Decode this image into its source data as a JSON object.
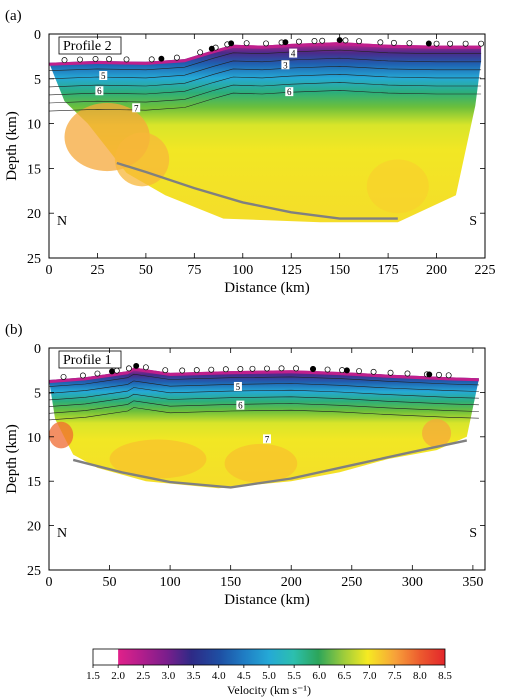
{
  "colors": {
    "ramp": [
      "#ffffff",
      "#e0218a",
      "#b01e8c",
      "#7a1e8c",
      "#2e2a86",
      "#1e4fa3",
      "#1f7dc4",
      "#25a9d6",
      "#2cbfae",
      "#2ca55a",
      "#44b44a",
      "#9acb3c",
      "#e2e82a",
      "#f6ea22",
      "#f9c12a",
      "#f7a03a",
      "#f27f3a",
      "#ec5a2e",
      "#e3262b"
    ],
    "basement": "#808080"
  },
  "chart_data": [
    {
      "type": "heatmap",
      "panel_label": "(a)",
      "profile_label": "Profile 2",
      "xlabel": "Distance (km)",
      "ylabel": "Depth (km)",
      "xlim": [
        0,
        225
      ],
      "ylim": [
        0,
        25
      ],
      "x_ticks": [
        0,
        25,
        50,
        75,
        100,
        125,
        150,
        175,
        200,
        225
      ],
      "y_ticks": [
        0,
        5,
        10,
        15,
        20,
        25
      ],
      "corner_left": "N",
      "corner_right": "S",
      "contour_labels": [
        {
          "text": "3",
          "x": 122,
          "y": 3.6
        },
        {
          "text": "4",
          "x": 126,
          "y": 2.3
        },
        {
          "text": "5",
          "x": 28,
          "y": 4.8
        },
        {
          "text": "6",
          "x": 26,
          "y": 6.5
        },
        {
          "text": "6",
          "x": 124,
          "y": 6.6
        },
        {
          "text": "7",
          "x": 45,
          "y": 8.4
        }
      ],
      "stations_open_x": [
        8,
        16,
        24,
        31,
        40,
        53,
        66,
        78,
        86,
        92,
        102,
        112,
        120,
        129,
        137,
        141,
        153,
        160,
        171,
        178,
        186,
        200,
        207,
        215,
        223
      ],
      "stations_filled_x": [
        58,
        84,
        94,
        122,
        150,
        196
      ],
      "topography": [
        [
          0,
          3.2
        ],
        [
          25,
          3.0
        ],
        [
          50,
          3.1
        ],
        [
          70,
          2.8
        ],
        [
          85,
          1.8
        ],
        [
          95,
          1.2
        ],
        [
          110,
          1.3
        ],
        [
          125,
          1.1
        ],
        [
          150,
          0.9
        ],
        [
          175,
          1.2
        ],
        [
          200,
          1.3
        ],
        [
          223,
          1.3
        ]
      ],
      "model_bottom": [
        [
          0,
          3.2
        ],
        [
          8,
          7.5
        ],
        [
          20,
          10
        ],
        [
          40,
          15.5
        ],
        [
          60,
          18
        ],
        [
          90,
          20.6
        ],
        [
          140,
          21
        ],
        [
          180,
          21
        ],
        [
          210,
          18
        ],
        [
          220,
          8
        ],
        [
          223,
          3.0
        ]
      ],
      "basement_interface": [
        [
          35,
          14.4
        ],
        [
          50,
          15.4
        ],
        [
          75,
          17.2
        ],
        [
          100,
          18.8
        ],
        [
          125,
          19.9
        ],
        [
          150,
          20.6
        ],
        [
          180,
          20.6
        ]
      ]
    },
    {
      "type": "heatmap",
      "panel_label": "(b)",
      "profile_label": "Profile 1",
      "xlabel": "Distance (km)",
      "ylabel": "Depth (km)",
      "xlim": [
        0,
        360
      ],
      "ylim": [
        0,
        25
      ],
      "x_ticks": [
        0,
        50,
        100,
        150,
        200,
        250,
        300,
        350
      ],
      "y_ticks": [
        0,
        5,
        10,
        15,
        20,
        25
      ],
      "corner_left": "N",
      "corner_right": "S",
      "contour_labels": [
        {
          "text": "5",
          "x": 156,
          "y": 4.5
        },
        {
          "text": "6",
          "x": 158,
          "y": 6.6
        },
        {
          "text": "7",
          "x": 180,
          "y": 10.4
        }
      ],
      "stations_open_x": [
        12,
        28,
        40,
        56,
        66,
        80,
        96,
        110,
        122,
        134,
        146,
        158,
        168,
        180,
        192,
        204,
        218,
        230,
        242,
        256,
        268,
        282,
        296,
        312,
        322,
        330
      ],
      "stations_filled_x": [
        52,
        72,
        218,
        246,
        314
      ],
      "topography": [
        [
          0,
          3.6
        ],
        [
          30,
          3.3
        ],
        [
          65,
          2.6
        ],
        [
          70,
          2.2
        ],
        [
          100,
          2.8
        ],
        [
          150,
          2.6
        ],
        [
          200,
          2.5
        ],
        [
          240,
          2.7
        ],
        [
          280,
          3.0
        ],
        [
          330,
          3.3
        ],
        [
          355,
          3.4
        ]
      ],
      "model_bottom": [
        [
          0,
          3.6
        ],
        [
          5,
          8
        ],
        [
          20,
          12
        ],
        [
          40,
          13.5
        ],
        [
          80,
          15
        ],
        [
          140,
          15.8
        ],
        [
          200,
          15
        ],
        [
          240,
          14
        ],
        [
          280,
          12.5
        ],
        [
          320,
          11.5
        ],
        [
          345,
          10
        ],
        [
          355,
          3.5
        ]
      ],
      "basement_interface": [
        [
          20,
          12.6
        ],
        [
          60,
          14
        ],
        [
          100,
          15.1
        ],
        [
          150,
          15.7
        ],
        [
          200,
          14.7
        ],
        [
          250,
          13.2
        ],
        [
          300,
          11.7
        ],
        [
          345,
          10.4
        ]
      ]
    }
  ],
  "colorbar": {
    "label": "Velocity (km s⁻¹)",
    "ticks": [
      "1.5",
      "2.0",
      "2.5",
      "3.0",
      "3.5",
      "4.0",
      "4.5",
      "5.0",
      "5.5",
      "6.0",
      "6.5",
      "7.0",
      "7.5",
      "8.0",
      "8.5"
    ]
  }
}
